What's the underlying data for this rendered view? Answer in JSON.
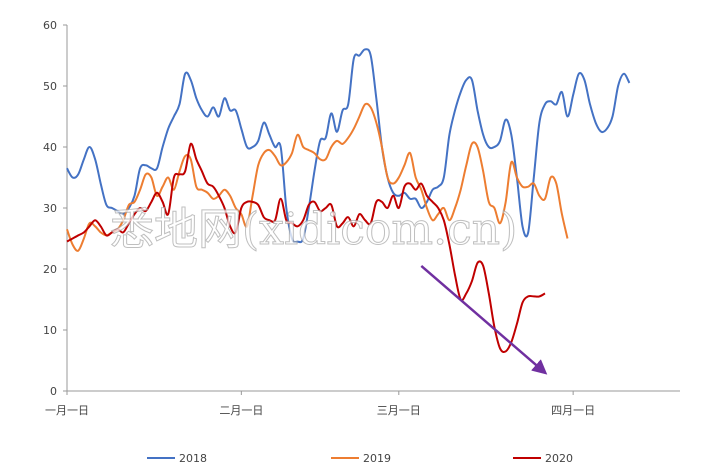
{
  "watermark": "悉地网(xidicom.cn)",
  "chart_data": {
    "type": "line",
    "title": "",
    "xlabel": "",
    "ylabel": "",
    "ylim": [
      0,
      60
    ],
    "xlim": [
      1,
      110
    ],
    "yticks": [
      0,
      10,
      20,
      30,
      40,
      50,
      60
    ],
    "xticks": [
      {
        "x": 1,
        "label": "一月一日"
      },
      {
        "x": 32,
        "label": "二月一日"
      },
      {
        "x": 60,
        "label": "三月一日"
      },
      {
        "x": 91,
        "label": "四月一日"
      }
    ],
    "grid": false,
    "legend": "bottom",
    "series": [
      {
        "name": "2018",
        "color": "#4472C4",
        "points": [
          [
            1,
            36.5
          ],
          [
            2,
            35
          ],
          [
            3,
            35.5
          ],
          [
            4,
            38
          ],
          [
            5,
            40
          ],
          [
            6,
            38
          ],
          [
            7,
            34
          ],
          [
            8,
            30.5
          ],
          [
            9,
            30
          ],
          [
            10,
            29.5
          ],
          [
            11,
            29
          ],
          [
            12,
            30
          ],
          [
            13,
            32
          ],
          [
            14,
            36.5
          ],
          [
            15,
            37
          ],
          [
            16,
            36.5
          ],
          [
            17,
            36.5
          ],
          [
            18,
            40
          ],
          [
            19,
            43
          ],
          [
            20,
            45
          ],
          [
            21,
            47
          ],
          [
            22,
            52
          ],
          [
            23,
            51
          ],
          [
            24,
            48
          ],
          [
            25,
            46
          ],
          [
            26,
            45
          ],
          [
            27,
            46.5
          ],
          [
            28,
            45
          ],
          [
            29,
            48
          ],
          [
            30,
            46
          ],
          [
            31,
            46
          ],
          [
            32,
            43
          ],
          [
            33,
            40
          ],
          [
            34,
            40
          ],
          [
            35,
            41
          ],
          [
            36,
            44
          ],
          [
            37,
            42
          ],
          [
            38,
            40
          ],
          [
            39,
            40
          ],
          [
            40,
            30
          ],
          [
            41,
            25
          ],
          [
            42,
            24.5
          ],
          [
            43,
            25
          ],
          [
            44,
            30
          ],
          [
            45,
            36
          ],
          [
            46,
            41
          ],
          [
            47,
            41.5
          ],
          [
            48,
            45.5
          ],
          [
            49,
            42.5
          ],
          [
            50,
            46
          ],
          [
            51,
            47
          ],
          [
            52,
            54.5
          ],
          [
            53,
            55
          ],
          [
            54,
            56
          ],
          [
            55,
            55
          ],
          [
            56,
            48
          ],
          [
            57,
            40
          ],
          [
            58,
            35
          ],
          [
            59,
            32.5
          ],
          [
            60,
            32
          ],
          [
            61,
            32.5
          ],
          [
            62,
            31.5
          ],
          [
            63,
            31.5
          ],
          [
            64,
            30
          ],
          [
            65,
            31
          ],
          [
            66,
            33
          ],
          [
            67,
            33.5
          ],
          [
            68,
            35
          ],
          [
            69,
            42
          ],
          [
            70,
            46
          ],
          [
            71,
            49
          ],
          [
            72,
            51
          ],
          [
            73,
            51
          ],
          [
            74,
            46
          ],
          [
            75,
            42
          ],
          [
            76,
            40
          ],
          [
            77,
            40
          ],
          [
            78,
            41
          ],
          [
            79,
            44.5
          ],
          [
            80,
            42
          ],
          [
            81,
            35
          ],
          [
            82,
            27
          ],
          [
            83,
            26
          ],
          [
            84,
            35
          ],
          [
            85,
            44
          ],
          [
            86,
            47
          ],
          [
            87,
            47.5
          ],
          [
            88,
            47
          ],
          [
            89,
            49
          ],
          [
            90,
            45
          ],
          [
            91,
            48.5
          ],
          [
            92,
            52
          ],
          [
            93,
            51
          ],
          [
            94,
            47
          ],
          [
            95,
            44
          ],
          [
            96,
            42.5
          ],
          [
            97,
            43
          ],
          [
            98,
            45
          ],
          [
            99,
            50
          ],
          [
            100,
            52
          ],
          [
            101,
            50.5
          ]
        ]
      },
      {
        "name": "2019",
        "color": "#ED7D31",
        "points": [
          [
            1,
            26.5
          ],
          [
            2,
            24
          ],
          [
            3,
            23
          ],
          [
            4,
            25
          ],
          [
            5,
            27.5
          ],
          [
            6,
            27
          ],
          [
            7,
            26
          ],
          [
            8,
            25.5
          ],
          [
            9,
            26
          ],
          [
            10,
            26.5
          ],
          [
            11,
            28
          ],
          [
            12,
            30.5
          ],
          [
            13,
            31
          ],
          [
            14,
            33
          ],
          [
            15,
            35.5
          ],
          [
            16,
            35
          ],
          [
            17,
            32
          ],
          [
            18,
            33.5
          ],
          [
            19,
            35
          ],
          [
            20,
            33
          ],
          [
            21,
            36
          ],
          [
            22,
            38.5
          ],
          [
            23,
            38
          ],
          [
            24,
            33.5
          ],
          [
            25,
            33
          ],
          [
            26,
            32.5
          ],
          [
            27,
            31.5
          ],
          [
            28,
            32
          ],
          [
            29,
            33
          ],
          [
            30,
            32
          ],
          [
            31,
            30
          ],
          [
            32,
            29
          ],
          [
            33,
            27
          ],
          [
            34,
            32
          ],
          [
            35,
            37
          ],
          [
            36,
            39
          ],
          [
            37,
            39.5
          ],
          [
            38,
            38.5
          ],
          [
            39,
            37
          ],
          [
            40,
            37.5
          ],
          [
            41,
            39
          ],
          [
            42,
            42
          ],
          [
            43,
            40
          ],
          [
            44,
            39.5
          ],
          [
            45,
            39
          ],
          [
            46,
            38
          ],
          [
            47,
            38
          ],
          [
            48,
            40
          ],
          [
            49,
            41
          ],
          [
            50,
            40.5
          ],
          [
            51,
            41.5
          ],
          [
            52,
            43
          ],
          [
            53,
            45
          ],
          [
            54,
            47
          ],
          [
            55,
            46.5
          ],
          [
            56,
            44
          ],
          [
            57,
            40
          ],
          [
            58,
            35
          ],
          [
            59,
            34
          ],
          [
            60,
            35
          ],
          [
            61,
            37
          ],
          [
            62,
            39
          ],
          [
            63,
            35
          ],
          [
            64,
            33
          ],
          [
            65,
            30
          ],
          [
            66,
            28
          ],
          [
            67,
            29
          ],
          [
            68,
            30
          ],
          [
            69,
            28
          ],
          [
            70,
            30
          ],
          [
            71,
            33
          ],
          [
            72,
            37
          ],
          [
            73,
            40.5
          ],
          [
            74,
            40
          ],
          [
            75,
            36
          ],
          [
            76,
            31
          ],
          [
            77,
            30
          ],
          [
            78,
            27.5
          ],
          [
            79,
            31
          ],
          [
            80,
            37.5
          ],
          [
            81,
            35
          ],
          [
            82,
            33.5
          ],
          [
            83,
            33.5
          ],
          [
            84,
            34
          ],
          [
            85,
            32
          ],
          [
            86,
            31.5
          ],
          [
            87,
            35
          ],
          [
            88,
            34
          ],
          [
            89,
            29
          ],
          [
            90,
            25
          ]
        ]
      },
      {
        "name": "2020",
        "color": "#C00000",
        "points": [
          [
            1,
            24.5
          ],
          [
            2,
            25
          ],
          [
            3,
            25.5
          ],
          [
            4,
            26
          ],
          [
            5,
            27
          ],
          [
            6,
            28
          ],
          [
            7,
            27
          ],
          [
            8,
            25.5
          ],
          [
            9,
            26
          ],
          [
            10,
            26.5
          ],
          [
            11,
            26
          ],
          [
            12,
            27.5
          ],
          [
            13,
            29
          ],
          [
            14,
            30
          ],
          [
            15,
            29.5
          ],
          [
            16,
            31
          ],
          [
            17,
            32.5
          ],
          [
            18,
            31
          ],
          [
            19,
            29
          ],
          [
            20,
            35
          ],
          [
            21,
            35.5
          ],
          [
            22,
            36
          ],
          [
            23,
            40.5
          ],
          [
            24,
            38
          ],
          [
            25,
            36
          ],
          [
            26,
            34
          ],
          [
            27,
            33.5
          ],
          [
            28,
            32
          ],
          [
            29,
            30
          ],
          [
            30,
            27
          ],
          [
            31,
            26
          ],
          [
            32,
            30
          ],
          [
            33,
            31
          ],
          [
            34,
            31
          ],
          [
            35,
            30.5
          ],
          [
            36,
            28.5
          ],
          [
            37,
            28
          ],
          [
            38,
            28
          ],
          [
            39,
            31.5
          ],
          [
            40,
            28
          ],
          [
            41,
            27.5
          ],
          [
            42,
            27
          ],
          [
            43,
            28
          ],
          [
            44,
            30.5
          ],
          [
            45,
            31
          ],
          [
            46,
            29.5
          ],
          [
            47,
            30
          ],
          [
            48,
            30.5
          ],
          [
            49,
            27
          ],
          [
            50,
            27.5
          ],
          [
            51,
            28.5
          ],
          [
            52,
            27
          ],
          [
            53,
            29
          ],
          [
            54,
            28
          ],
          [
            55,
            27.5
          ],
          [
            56,
            31
          ],
          [
            57,
            31
          ],
          [
            58,
            30
          ],
          [
            59,
            32
          ],
          [
            60,
            30
          ],
          [
            61,
            33.5
          ],
          [
            62,
            34
          ],
          [
            63,
            33
          ],
          [
            64,
            34
          ],
          [
            65,
            32
          ],
          [
            66,
            31
          ],
          [
            67,
            30
          ],
          [
            68,
            28
          ],
          [
            69,
            24
          ],
          [
            70,
            19
          ],
          [
            71,
            15
          ],
          [
            72,
            16
          ],
          [
            73,
            18
          ],
          [
            74,
            21
          ],
          [
            75,
            20.5
          ],
          [
            76,
            16
          ],
          [
            77,
            10.5
          ],
          [
            78,
            7
          ],
          [
            79,
            6.5
          ],
          [
            80,
            8
          ],
          [
            81,
            11
          ],
          [
            82,
            14.5
          ],
          [
            83,
            15.5
          ],
          [
            84,
            15.5
          ],
          [
            85,
            15.5
          ],
          [
            86,
            16
          ]
        ]
      }
    ],
    "annotations": [
      {
        "type": "arrow",
        "color": "#7030A0",
        "from": [
          64,
          20.5
        ],
        "to": [
          86,
          3
        ]
      }
    ]
  }
}
